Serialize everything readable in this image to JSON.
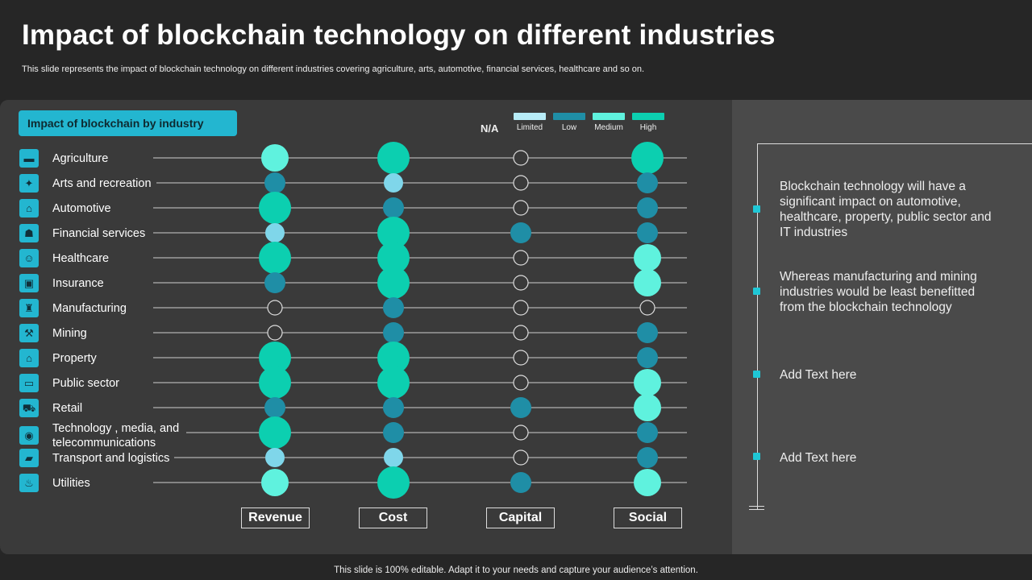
{
  "title": "Impact of blockchain technology on different industries",
  "subtitle": "This slide represents the impact of blockchain technology on different industries covering agriculture, arts, automotive, financial services, healthcare and so on.",
  "footer": "This slide is 100% editable. Adapt it to your needs and capture your audience’s attention.",
  "badge": "Impact of blockchain by industry",
  "colors": {
    "background": "#262626",
    "panel_left": "#3a3a3a",
    "panel_right": "#4a4a4a",
    "accent": "#23b6d0",
    "limited": "#7fd6ea",
    "low": "#1f8ea6",
    "medium": "#5ff2de",
    "high": "#0ccfb0"
  },
  "legend": {
    "na_label": "N/A",
    "items": [
      {
        "label": "Limited",
        "color": "#7fd6ea"
      },
      {
        "label": "Low",
        "color": "#1f8ea6"
      },
      {
        "label": "Medium",
        "color": "#5ff2de"
      },
      {
        "label": "High",
        "color": "#0ccfb0"
      }
    ]
  },
  "notes": [
    "Blockchain technology  will have a significant impact on automotive, healthcare, property, public sector and IT industries",
    "Whereas manufacturing  and mining industries would be least benefitted from the blockchain technology",
    "Add Text here",
    "Add Text here"
  ],
  "chart_data": {
    "type": "dot-matrix",
    "title": "Impact of blockchain by industry",
    "levels": [
      "N/A",
      "Limited",
      "Low",
      "Medium",
      "High"
    ],
    "columns": [
      "Revenue",
      "Cost",
      "Capital",
      "Social"
    ],
    "rows": [
      {
        "industry": "Agriculture",
        "icon": "tractor-icon",
        "values": [
          "Medium",
          "High",
          "N/A",
          "High"
        ]
      },
      {
        "industry": "Arts and recreation",
        "icon": "theater-icon",
        "values": [
          "Low",
          "Limited",
          "N/A",
          "Low"
        ]
      },
      {
        "industry": "Automotive",
        "icon": "car-icon",
        "values": [
          "High",
          "Low",
          "N/A",
          "Low"
        ]
      },
      {
        "industry": "Financial services",
        "icon": "bank-icon",
        "values": [
          "Limited",
          "High",
          "Low",
          "Low"
        ]
      },
      {
        "industry": "Healthcare",
        "icon": "doctor-icon",
        "values": [
          "High",
          "High",
          "N/A",
          "Medium"
        ]
      },
      {
        "industry": "Insurance",
        "icon": "shield-icon",
        "values": [
          "Low",
          "High",
          "N/A",
          "Medium"
        ]
      },
      {
        "industry": "Manufacturing",
        "icon": "factory-icon",
        "values": [
          "N/A",
          "Low",
          "N/A",
          "N/A"
        ]
      },
      {
        "industry": "Mining",
        "icon": "pickaxe-icon",
        "values": [
          "N/A",
          "Low",
          "N/A",
          "Low"
        ]
      },
      {
        "industry": "Property",
        "icon": "house-icon",
        "values": [
          "High",
          "High",
          "N/A",
          "Low"
        ]
      },
      {
        "industry": "Public sector",
        "icon": "bus-icon",
        "values": [
          "High",
          "High",
          "N/A",
          "Medium"
        ]
      },
      {
        "industry": "Retail",
        "icon": "cart-icon",
        "values": [
          "Low",
          "Low",
          "Low",
          "Medium"
        ]
      },
      {
        "industry": "Technology , media, and telecommunications",
        "icon": "globe-icon",
        "values": [
          "High",
          "Low",
          "N/A",
          "Low"
        ]
      },
      {
        "industry": "Transport and logistics",
        "icon": "truck-icon",
        "values": [
          "Limited",
          "Limited",
          "N/A",
          "Low"
        ]
      },
      {
        "industry": "Utilities",
        "icon": "plug-icon",
        "values": [
          "Medium",
          "High",
          "Low",
          "Medium"
        ]
      }
    ]
  }
}
